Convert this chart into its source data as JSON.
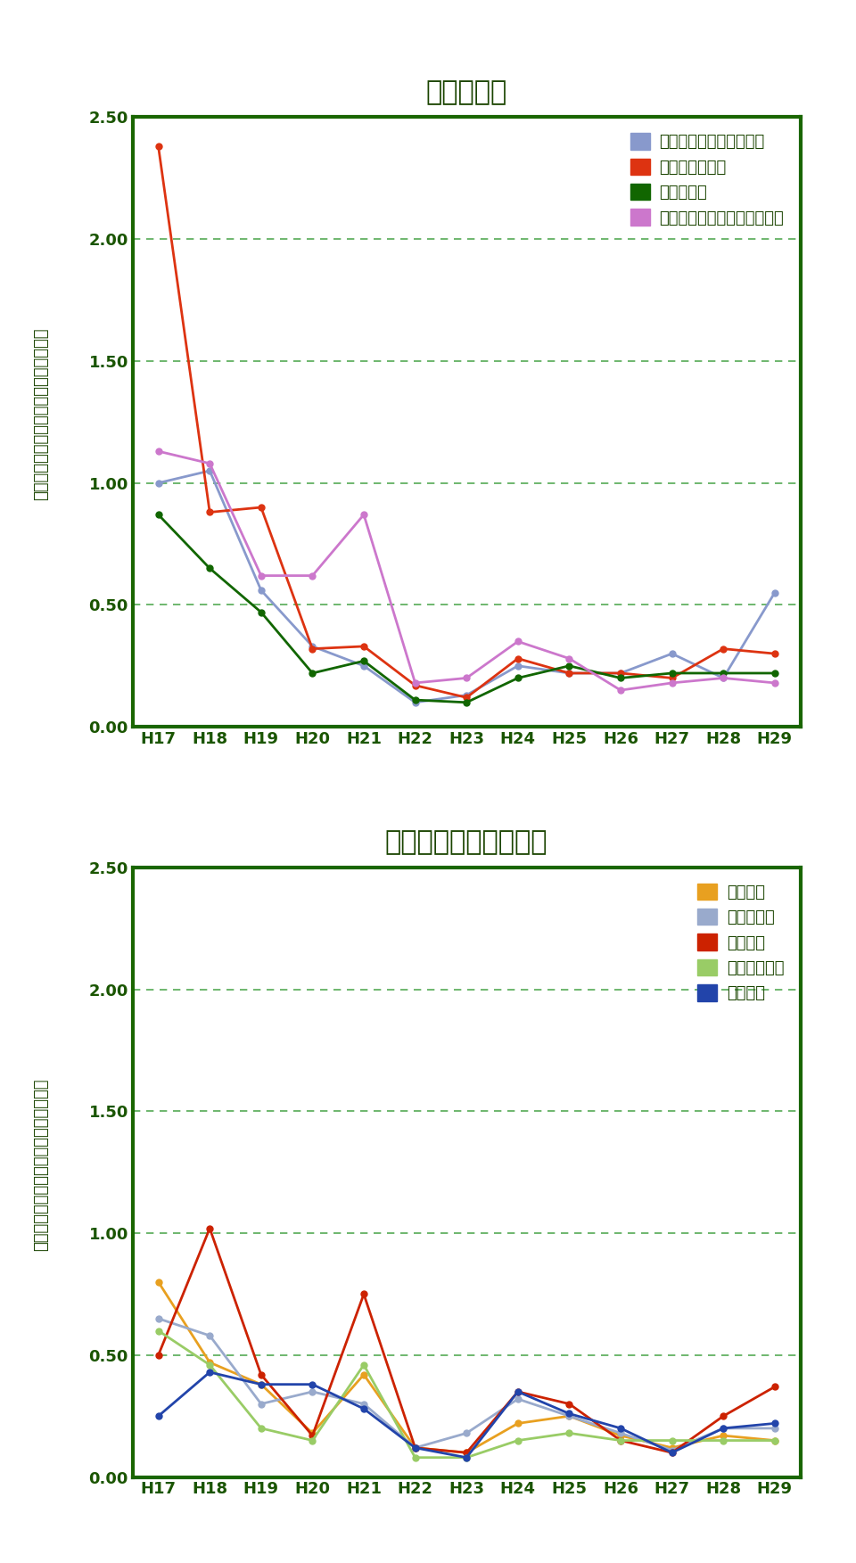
{
  "x_labels": [
    "H17",
    "H18",
    "H19",
    "H20",
    "H21",
    "H22",
    "H23",
    "H24",
    "H25",
    "H26",
    "H27",
    "H28",
    "H29"
  ],
  "chart1": {
    "title": "発生源周辺",
    "series": [
      {
        "label": "旧石綿製品製造事業場等",
        "color": "#8899cc",
        "data": [
          1.0,
          1.05,
          0.56,
          0.33,
          0.25,
          0.1,
          0.13,
          0.25,
          0.22,
          0.22,
          0.3,
          0.2,
          0.55
        ]
      },
      {
        "label": "廃棄物処分場等",
        "color": "#dd3311",
        "data": [
          2.38,
          0.88,
          0.9,
          0.32,
          0.33,
          0.17,
          0.12,
          0.28,
          0.22,
          0.22,
          0.2,
          0.32,
          0.3
        ]
      },
      {
        "label": "蛇紋岩地域",
        "color": "#116600",
        "data": [
          0.87,
          0.65,
          0.47,
          0.22,
          0.27,
          0.11,
          0.1,
          0.2,
          0.25,
          0.2,
          0.22,
          0.22,
          0.22
        ]
      },
      {
        "label": "高速道路および幹線道路沿線",
        "color": "#cc77cc",
        "data": [
          1.13,
          1.08,
          0.62,
          0.62,
          0.87,
          0.18,
          0.2,
          0.35,
          0.28,
          0.15,
          0.18,
          0.2,
          0.18
        ]
      }
    ],
    "ylim": [
      0.0,
      2.5
    ],
    "yticks": [
      0.0,
      0.5,
      1.0,
      1.5,
      2.0,
      2.5
    ],
    "ylabel": "総繊維数濃度（本／Ｌ）（幾何平均値）"
  },
  "chart2": {
    "title": "バックグラウンド地域",
    "series": [
      {
        "label": "住宅地域",
        "color": "#e8a020",
        "data": [
          0.8,
          0.47,
          0.38,
          0.18,
          0.42,
          0.12,
          0.1,
          0.22,
          0.25,
          0.17,
          0.12,
          0.17,
          0.15
        ]
      },
      {
        "label": "商工業地域",
        "color": "#99aacc",
        "data": [
          0.65,
          0.58,
          0.3,
          0.35,
          0.3,
          0.12,
          0.18,
          0.32,
          0.25,
          0.18,
          0.11,
          0.2,
          0.2
        ]
      },
      {
        "label": "農業地域",
        "color": "#cc2200",
        "data": [
          0.5,
          1.02,
          0.42,
          0.17,
          0.75,
          0.12,
          0.1,
          0.35,
          0.3,
          0.15,
          0.1,
          0.25,
          0.37
        ]
      },
      {
        "label": "内陸山間地域",
        "color": "#99cc66",
        "data": [
          0.6,
          0.46,
          0.2,
          0.15,
          0.46,
          0.08,
          0.08,
          0.15,
          0.18,
          0.15,
          0.15,
          0.15,
          0.15
        ]
      },
      {
        "label": "離島地域",
        "color": "#2244aa",
        "data": [
          0.25,
          0.43,
          0.38,
          0.38,
          0.28,
          0.12,
          0.08,
          0.35,
          0.26,
          0.2,
          0.1,
          0.2,
          0.22
        ]
      }
    ],
    "ylim": [
      0.0,
      2.5
    ],
    "yticks": [
      0.0,
      0.5,
      1.0,
      1.5,
      2.0,
      2.5
    ],
    "ylabel": "総繊維数濃度（本／Ｌ）（幾何平均値）"
  },
  "border_color": "#1a6600",
  "title_color": "#1a4400",
  "axis_color": "#1a5500",
  "grid_color": "#55aa55",
  "plot_bg_color": "#ffffff",
  "marker": "o",
  "marker_size": 5,
  "linewidth": 2.0,
  "title_fontsize": 22,
  "tick_fontsize": 13,
  "legend_fontsize": 13,
  "ylabel_fontsize": 13
}
